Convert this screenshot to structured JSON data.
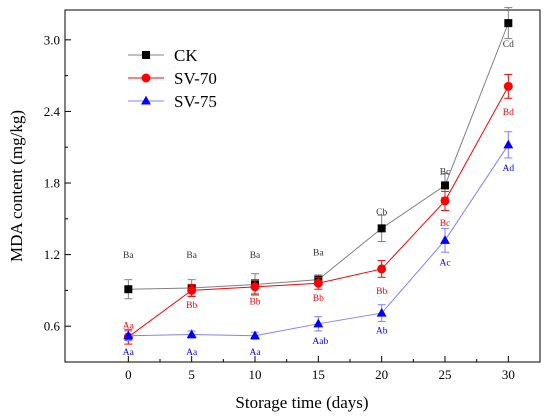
{
  "chart_data": {
    "type": "line",
    "xlabel": "Storage time (days)",
    "ylabel": "MDA content (mg/kg)",
    "x": [
      0,
      5,
      10,
      15,
      20,
      25,
      30
    ],
    "xlim": [
      -5,
      32.5
    ],
    "ylim": [
      0.3,
      3.25
    ],
    "xticks": [
      0,
      5,
      10,
      15,
      20,
      25,
      30
    ],
    "yticks": [
      0.6,
      1.2,
      1.8,
      2.4,
      3.0
    ],
    "ytick_labels": [
      "0.6",
      "1.2",
      "1.8",
      "2.4",
      "3.0"
    ],
    "grid": false,
    "legend_position": "top-left",
    "series": [
      {
        "name": "CK",
        "color": "#000000",
        "line_color": "#808080",
        "marker": "square",
        "values": [
          0.91,
          0.92,
          0.95,
          0.99,
          1.42,
          1.78,
          3.14
        ],
        "errors": [
          0.08,
          0.07,
          0.09,
          0.04,
          0.11,
          0.1,
          0.13
        ],
        "letters": [
          "Ba",
          "Ba",
          "Ba",
          "Ba",
          "Cb",
          "Bc",
          "Cd"
        ],
        "letter_y": [
          1.2,
          1.2,
          1.2,
          1.22,
          1.56,
          1.9,
          2.97
        ]
      },
      {
        "name": "SV-70",
        "color": "#ff0000",
        "line_color": "#ff0000",
        "marker": "circle",
        "values": [
          0.51,
          0.9,
          0.93,
          0.96,
          1.08,
          1.65,
          2.61
        ],
        "errors": [
          0.06,
          0.05,
          0.06,
          0.05,
          0.07,
          0.08,
          0.1
        ],
        "letters": [
          "Aa",
          "Bb",
          "Bb",
          "Bb",
          "Bb",
          "Bc",
          "Bd"
        ],
        "letter_y": [
          0.61,
          0.78,
          0.81,
          0.84,
          0.9,
          1.47,
          2.4
        ]
      },
      {
        "name": "SV-75",
        "color": "#0000ff",
        "line_color": "#8080ff",
        "marker": "triangle",
        "values": [
          0.52,
          0.53,
          0.52,
          0.62,
          0.71,
          1.32,
          2.12
        ],
        "errors": [
          0.04,
          0.03,
          0.03,
          0.06,
          0.07,
          0.1,
          0.11
        ],
        "letters": [
          "Aa",
          "Aa",
          "Aa",
          "Aab",
          "Ab",
          "Ac",
          "Ad"
        ],
        "letter_y": [
          0.39,
          0.39,
          0.39,
          0.48,
          0.57,
          1.14,
          1.93
        ]
      }
    ]
  }
}
